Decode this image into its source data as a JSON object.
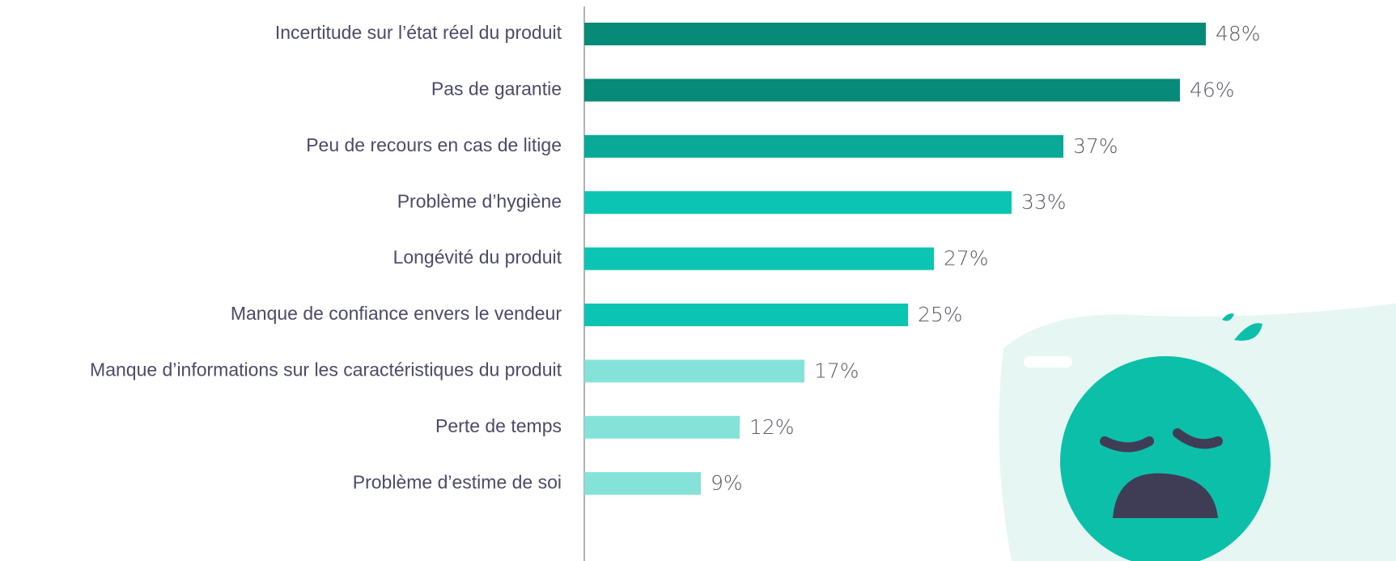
{
  "chart_data": {
    "type": "hbar",
    "categories": [
      "Incertitude sur l’état réel du produit",
      "Pas de garantie",
      "Peu de recours en cas de litige",
      "Problème d’hygiène",
      "Longévité du produit",
      "Manque de confiance envers le vendeur",
      "Manque d’informations sur les caractéristiques du produit",
      "Perte de temps",
      "Problème d’estime de soi"
    ],
    "values": [
      48,
      46,
      37,
      33,
      27,
      25,
      17,
      12,
      9
    ],
    "value_labels": [
      "48%",
      "46%",
      "37%",
      "33%",
      "27%",
      "25%",
      "17%",
      "12%",
      "9%"
    ],
    "colors": [
      "#078a78",
      "#078a78",
      "#0aa896",
      "#0cc4b2",
      "#0cc4b2",
      "#0cc4b2",
      "#85e2d8",
      "#85e2d8",
      "#85e2d8"
    ]
  }
}
